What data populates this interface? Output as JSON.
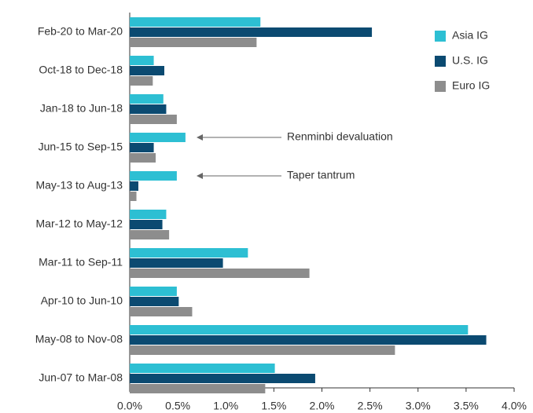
{
  "chart_data": {
    "type": "bar",
    "orientation": "horizontal",
    "categories": [
      "Feb-20 to Mar-20",
      "Oct-18 to Dec-18",
      "Jan-18 to Jun-18",
      "Jun-15 to Sep-15",
      "May-13 to Aug-13",
      "Mar-12 to May-12",
      "Mar-11 to Sep-11",
      "Apr-10 to Jun-10",
      "May-08 to Nov-08",
      "Jun-07 to Mar-08"
    ],
    "series": [
      {
        "name": "Asia IG",
        "color": "#2dbfd3",
        "values": [
          1.36,
          0.25,
          0.35,
          0.58,
          0.49,
          0.38,
          1.23,
          0.49,
          3.52,
          1.51
        ]
      },
      {
        "name": "U.S. IG",
        "color": "#0b4a71",
        "values": [
          2.52,
          0.36,
          0.38,
          0.25,
          0.09,
          0.34,
          0.97,
          0.51,
          3.71,
          1.93
        ]
      },
      {
        "name": "Euro IG",
        "color": "#8d8d8d",
        "values": [
          1.32,
          0.24,
          0.49,
          0.27,
          0.07,
          0.41,
          1.87,
          0.65,
          2.76,
          1.41
        ]
      }
    ],
    "xlim": [
      0,
      4
    ],
    "xticks": [
      {
        "value": 0,
        "label": "0.0%"
      },
      {
        "value": 0.5,
        "label": "0.5%"
      },
      {
        "value": 1,
        "label": "1.0%"
      },
      {
        "value": 1.5,
        "label": "1.5%"
      },
      {
        "value": 2,
        "label": "2.0%"
      },
      {
        "value": 2.5,
        "label": "2.5%"
      },
      {
        "value": 3,
        "label": "3.0%"
      },
      {
        "value": 3.5,
        "label": "3.5%"
      },
      {
        "value": 4,
        "label": "4.0%"
      }
    ],
    "annotations": [
      "Renminbi devaluation",
      "Taper tantrum"
    ],
    "legend": "upper right"
  }
}
